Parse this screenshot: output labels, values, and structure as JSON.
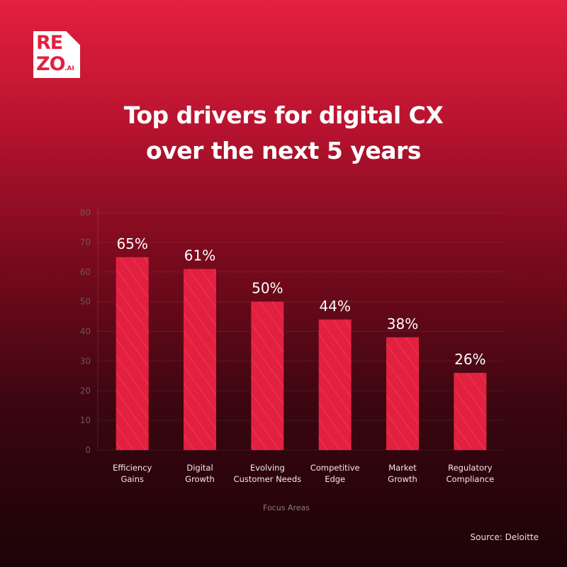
{
  "logo": {
    "line1": "RE",
    "line2": "ZO",
    "suffix": ".AI"
  },
  "title_line1": "Top drivers for digital CX",
  "title_line2": "over the next 5 years",
  "source": "Source: Deloitte",
  "colors": {
    "bar": "#e3203f",
    "accent": "#e3203f"
  },
  "chart_data": {
    "type": "bar",
    "title": "Top drivers for digital CX over the next 5 years",
    "categories": [
      [
        "Efficiency",
        "Gains"
      ],
      [
        "Digital",
        "Growth"
      ],
      [
        "Evolving",
        "Customer Needs"
      ],
      [
        "Competitive",
        "Edge"
      ],
      [
        "Market",
        "Growth"
      ],
      [
        "Regulatory",
        "Compliance"
      ]
    ],
    "values": [
      65,
      61,
      50,
      44,
      38,
      26
    ],
    "labels": [
      "65%",
      "61%",
      "50%",
      "44%",
      "38%",
      "26%"
    ],
    "yticks": [
      0,
      10,
      20,
      30,
      40,
      50,
      60,
      70,
      80
    ],
    "ylim": [
      0,
      80
    ],
    "xlabel": "Focus Areas",
    "ylabel": "",
    "grid": true
  }
}
